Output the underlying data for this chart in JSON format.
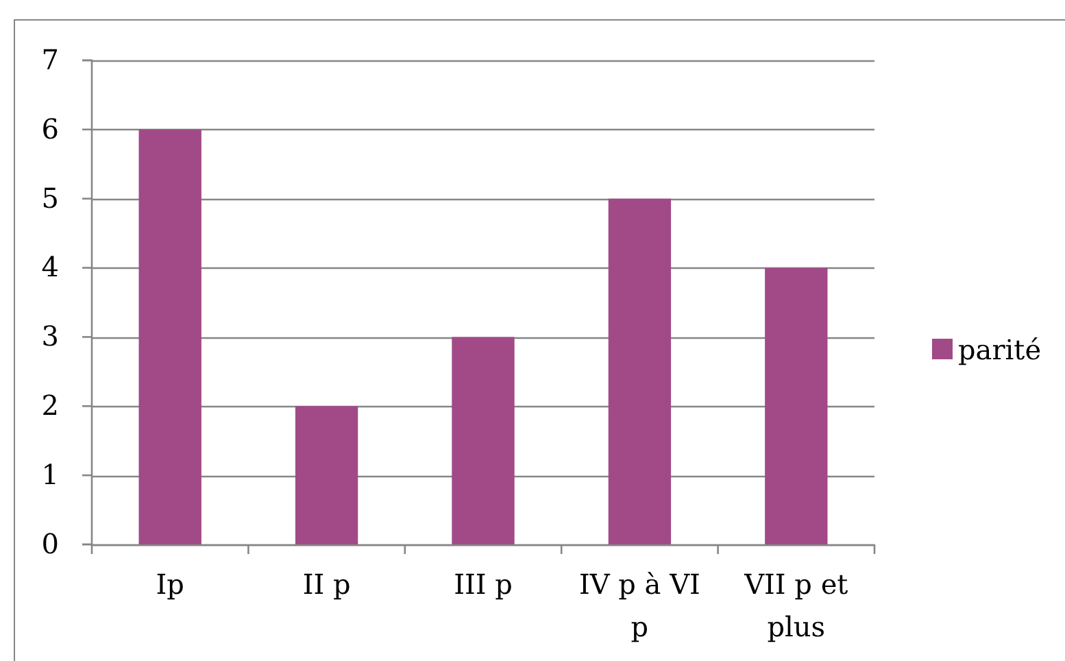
{
  "chart_data": {
    "type": "bar",
    "categories": [
      "Ip",
      "II p",
      "III p",
      "IV p à VI p",
      "VII p et plus"
    ],
    "series": [
      {
        "name": "parité",
        "color": "#a14a87",
        "values": [
          6,
          2,
          3,
          5,
          4
        ]
      }
    ],
    "ylim": [
      0,
      7
    ],
    "yticks": [
      0,
      1,
      2,
      3,
      4,
      5,
      6,
      7
    ],
    "grid": "y",
    "legend": "right"
  }
}
